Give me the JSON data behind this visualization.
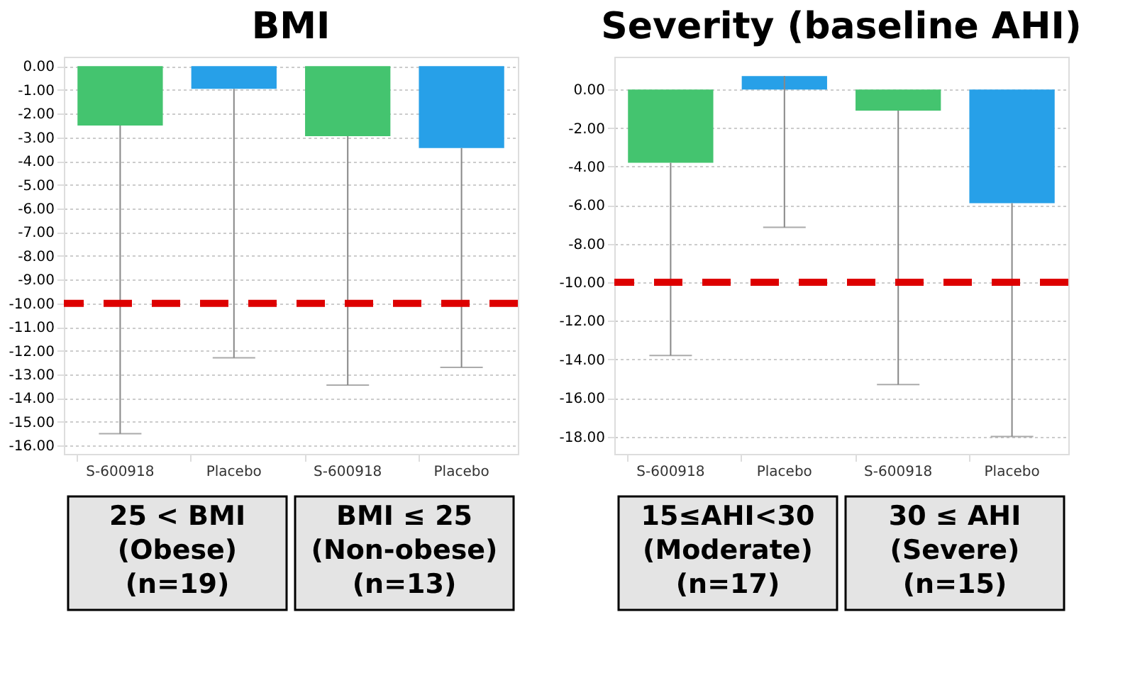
{
  "chart_data": [
    {
      "type": "bar",
      "title": "BMI",
      "categories": [
        "S-600918",
        "Placebo",
        "S-600918",
        "Placebo"
      ],
      "values": [
        -2.5,
        -0.95,
        -2.95,
        -3.45
      ],
      "colors": [
        "#44c46f",
        "#27a0e8",
        "#44c46f",
        "#27a0e8"
      ],
      "errors": [
        [
          -15.5,
          -2.5
        ],
        [
          -12.3,
          -0.95
        ],
        [
          -13.45,
          -2.95
        ],
        [
          -12.7,
          -3.45
        ]
      ],
      "annotations": [
        "25 < BMI\n(Obese)\n(n=19)",
        "BMI ≤ 25\n(Non-obese)\n(n=13)"
      ],
      "ylim": [
        -16.35,
        0.4
      ],
      "yticks": [
        {
          "value": 0,
          "label": "0.00"
        },
        {
          "value": -1,
          "label": "-1.00"
        },
        {
          "value": -2,
          "label": "-2.00"
        },
        {
          "value": -3,
          "label": "-3.00"
        },
        {
          "value": -4,
          "label": "-4.00"
        },
        {
          "value": -5,
          "label": "-5.00"
        },
        {
          "value": -6,
          "label": "-6.00"
        },
        {
          "value": -7,
          "label": "-7.00"
        },
        {
          "value": -8,
          "label": "-8.00"
        },
        {
          "value": -9,
          "label": "-9.00"
        },
        {
          "value": -10,
          "label": "-10.00"
        },
        {
          "value": -11,
          "label": "-11.00"
        },
        {
          "value": -12,
          "label": "-12.00"
        },
        {
          "value": -13,
          "label": "-13.00"
        },
        {
          "value": -14,
          "label": "-14.00"
        },
        {
          "value": -15,
          "label": "-15.00"
        },
        {
          "value": -16,
          "label": "-16.00"
        }
      ],
      "ref_lines": [
        {
          "axis": "y",
          "value": -10,
          "label": null,
          "color": "#dd0000",
          "line_style": "dashed"
        }
      ],
      "grid": "y"
    },
    {
      "type": "bar",
      "title": "Severity (baseline AHI)",
      "categories": [
        "S-600918",
        "Placebo",
        "S-600918",
        "Placebo"
      ],
      "values": [
        -3.8,
        0.7,
        -1.1,
        -5.9
      ],
      "colors": [
        "#44c46f",
        "#27a0e8",
        "#44c46f",
        "#27a0e8"
      ],
      "errors": [
        [
          -13.8,
          -3.8
        ],
        [
          -7.15,
          0.7
        ],
        [
          -15.3,
          -1.1
        ],
        [
          -18.0,
          -5.9
        ]
      ],
      "annotations": [
        "15≤AHI<30\n(Moderate)\n(n=17)",
        "30 ≤ AHI\n(Severe)\n(n=15)"
      ],
      "ylim": [
        -18.9,
        1.7
      ],
      "yticks": [
        {
          "value": 0,
          "label": "0.00"
        },
        {
          "value": -2,
          "label": "-2.00"
        },
        {
          "value": -4,
          "label": "-4.00"
        },
        {
          "value": -6,
          "label": "-6.00"
        },
        {
          "value": -8,
          "label": "-8.00"
        },
        {
          "value": -10,
          "label": "-10.00"
        },
        {
          "value": -12,
          "label": "-12.00"
        },
        {
          "value": -14,
          "label": "-14.00"
        },
        {
          "value": -16,
          "label": "-16.00"
        },
        {
          "value": -18,
          "label": "-18.00"
        }
      ],
      "ref_lines": [
        {
          "axis": "y",
          "value": -10,
          "label": null,
          "color": "#dd0000",
          "line_style": "dashed"
        }
      ],
      "grid": "y"
    }
  ]
}
